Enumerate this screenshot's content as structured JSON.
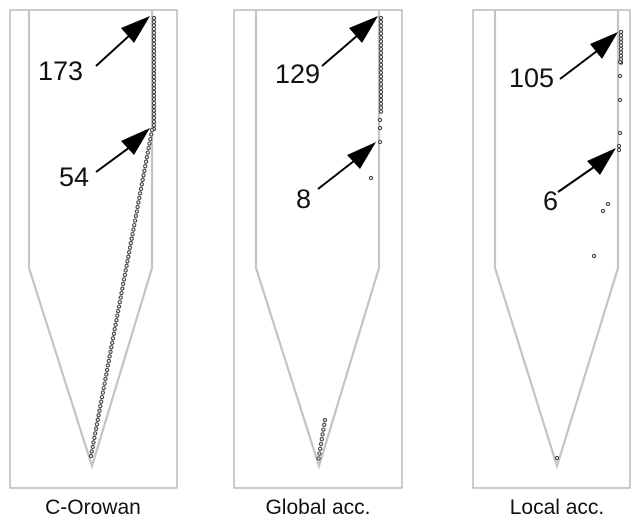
{
  "panels": [
    {
      "caption": "C-Orowan",
      "labels": [
        "173",
        "54"
      ]
    },
    {
      "caption": "Global acc.",
      "labels": [
        "129",
        "8"
      ]
    },
    {
      "caption": "Local acc.",
      "labels": [
        "105",
        "6"
      ]
    }
  ],
  "colors": {
    "frame": "#9a9a9a",
    "funnel": "#c4c4c4",
    "dots": "#444444",
    "text": "#111111"
  }
}
